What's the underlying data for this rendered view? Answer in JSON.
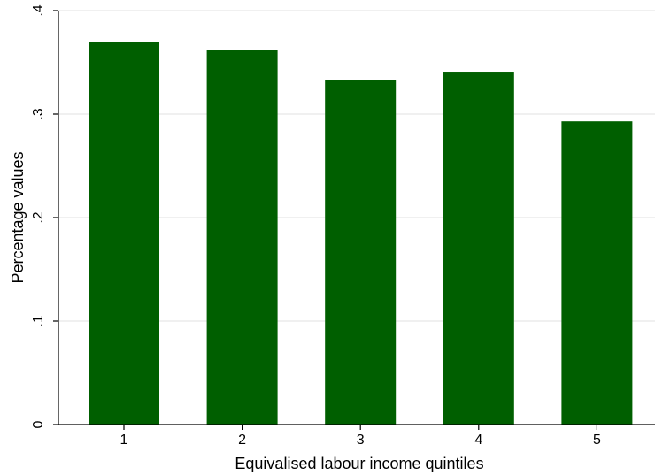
{
  "chart_data": {
    "type": "bar",
    "categories": [
      "1",
      "2",
      "3",
      "4",
      "5"
    ],
    "values": [
      0.37,
      0.362,
      0.333,
      0.341,
      0.293
    ],
    "title": "",
    "xlabel": "Equivalised labour income quintiles",
    "ylabel": "Percentage values",
    "ylim": [
      0,
      0.4
    ],
    "yticks": [
      0,
      0.1,
      0.2,
      0.3,
      0.4
    ],
    "ytick_labels": [
      "0",
      ".1",
      ".2",
      ".3",
      ".4"
    ],
    "grid": true,
    "legend": "none",
    "bar_color": "#005f00",
    "grid_color": "#e6e6e6"
  }
}
